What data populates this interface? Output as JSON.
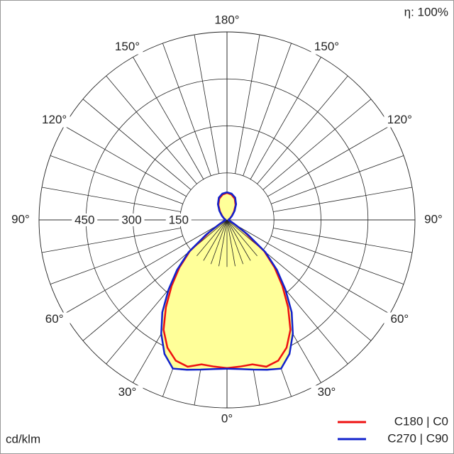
{
  "chart_data": {
    "type": "polar",
    "efficiency_label": "η: 100%",
    "unit_label": "cd/klm",
    "x": [
      0,
      5,
      10,
      15,
      20,
      25,
      30,
      35,
      40,
      45,
      50,
      55,
      60,
      70,
      80,
      90,
      100,
      110,
      120,
      130,
      140,
      150,
      160,
      170,
      180
    ],
    "series": [
      {
        "name": "C180 | C0",
        "color": "#ee1111",
        "values": [
          473,
          470,
          468,
          485,
          478,
          450,
          405,
          340,
          275,
          215,
          155,
          70,
          30,
          10,
          5,
          5,
          5,
          8,
          12,
          20,
          35,
          55,
          72,
          82,
          86
        ]
      },
      {
        "name": "C270 | C90",
        "color": "#1122cc",
        "values": [
          475,
          478,
          485,
          495,
          505,
          472,
          420,
          360,
          290,
          225,
          160,
          80,
          30,
          10,
          5,
          5,
          5,
          8,
          13,
          22,
          38,
          58,
          76,
          85,
          88
        ]
      }
    ],
    "rlim": [
      0,
      600
    ],
    "rticks": [
      150,
      300,
      450
    ],
    "angleticks": [
      {
        "value": 0,
        "label": "0°"
      },
      {
        "value": 30,
        "label": "30°"
      },
      {
        "value": 60,
        "label": "60°"
      },
      {
        "value": 90,
        "label": "90°"
      },
      {
        "value": 120,
        "label": "120°"
      },
      {
        "value": 150,
        "label": "150°"
      },
      {
        "value": 180,
        "label": "180°"
      }
    ],
    "fill_color": "#ffff99"
  }
}
